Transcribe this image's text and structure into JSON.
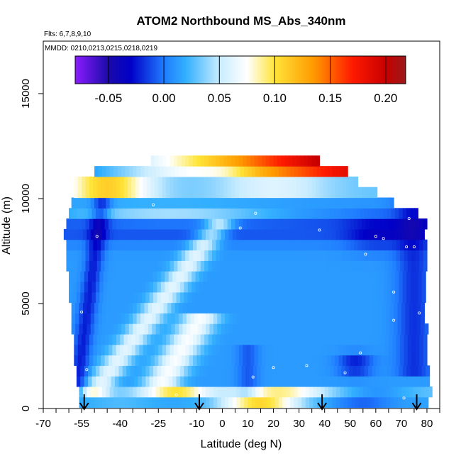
{
  "chart_data": {
    "type": "heatmap",
    "title": "ATOM2 Northbound MS_Abs_340nm",
    "subtitle_flights": "Flts: 6,7,8,9,10",
    "subtitle_dates": "MMDD: 0210,0213,0215,0218,0219",
    "xlabel": "Latitude (deg N)",
    "ylabel": "Altitude (m)",
    "xlim": [
      -70,
      85
    ],
    "ylim": [
      0,
      17500
    ],
    "x_ticks": [
      -70,
      -55,
      -40,
      -25,
      -10,
      0,
      10,
      20,
      30,
      40,
      50,
      60,
      70,
      80
    ],
    "y_ticks": [
      0,
      5000,
      10000,
      15000
    ],
    "colorbar": {
      "range": [
        -0.08,
        0.218
      ],
      "ticks": [
        -0.05,
        0.0,
        0.05,
        0.1,
        0.15,
        0.2
      ],
      "tick_labels": [
        "-0.05",
        "0.00",
        "0.05",
        "0.10",
        "0.15",
        "0.20"
      ],
      "stops": [
        {
          "v": -0.08,
          "c": "#8a1cff"
        },
        {
          "v": -0.05,
          "c": "#1a0aa8"
        },
        {
          "v": -0.03,
          "c": "#0000c8"
        },
        {
          "v": 0.0,
          "c": "#1f7bff"
        },
        {
          "v": 0.02,
          "c": "#33b0ff"
        },
        {
          "v": 0.05,
          "c": "#c8ecff"
        },
        {
          "v": 0.075,
          "c": "#ffffff"
        },
        {
          "v": 0.1,
          "c": "#ffe438"
        },
        {
          "v": 0.135,
          "c": "#ff9a00"
        },
        {
          "v": 0.17,
          "c": "#ff1a00"
        },
        {
          "v": 0.2,
          "c": "#c80000"
        },
        {
          "v": 0.218,
          "c": "#9a1a1a"
        }
      ]
    },
    "altitude_bins_m": [
      300,
      800,
      1300,
      1800,
      2300,
      2800,
      3300,
      3800,
      4300,
      4800,
      5300,
      5800,
      6300,
      6800,
      7300,
      7800,
      8300,
      8800,
      9300,
      9800,
      10300,
      10800,
      11300,
      11800
    ],
    "bin_extent_lat": [
      [
        -56,
        80
      ],
      [
        -56,
        81
      ],
      [
        -57,
        81
      ],
      [
        -57,
        80
      ],
      [
        -58,
        80
      ],
      [
        -58,
        80
      ],
      [
        -58,
        80
      ],
      [
        -59,
        80
      ],
      [
        -59,
        79
      ],
      [
        -59,
        79
      ],
      [
        -60,
        79
      ],
      [
        -60,
        79
      ],
      [
        -60,
        79
      ],
      [
        -61,
        80
      ],
      [
        -61,
        80
      ],
      [
        -61,
        80
      ],
      [
        -62,
        79
      ],
      [
        -61,
        79
      ],
      [
        -60,
        76
      ],
      [
        -59,
        66
      ],
      [
        -58,
        60
      ],
      [
        -58,
        52
      ],
      [
        -50,
        48
      ],
      [
        -28,
        37
      ]
    ],
    "arrow_latitudes": [
      -54,
      -9,
      39,
      76
    ],
    "markers": [
      {
        "lat": -53,
        "alt": 1850
      },
      {
        "lat": -55,
        "alt": 4600
      },
      {
        "lat": -49,
        "alt": 8200
      },
      {
        "lat": -27,
        "alt": 9700
      },
      {
        "lat": -11,
        "alt": 11400
      },
      {
        "lat": 7,
        "alt": 8600
      },
      {
        "lat": 13,
        "alt": 9300
      },
      {
        "lat": 38,
        "alt": 8500
      },
      {
        "lat": 60,
        "alt": 8200
      },
      {
        "lat": 63,
        "alt": 8100
      },
      {
        "lat": 72,
        "alt": 7700
      },
      {
        "lat": 75,
        "alt": 7700
      },
      {
        "lat": 73,
        "alt": 9050
      },
      {
        "lat": 56,
        "alt": 7350
      },
      {
        "lat": 67,
        "alt": 5550
      },
      {
        "lat": 77,
        "alt": 4550
      },
      {
        "lat": 67,
        "alt": 4200
      },
      {
        "lat": 54,
        "alt": 2650
      },
      {
        "lat": 48,
        "alt": 1700
      },
      {
        "lat": 33,
        "alt": 2050
      },
      {
        "lat": 20,
        "alt": 1950
      },
      {
        "lat": 12,
        "alt": 1500
      },
      {
        "lat": -18,
        "alt": 650
      },
      {
        "lat": 71,
        "alt": 500
      }
    ]
  }
}
